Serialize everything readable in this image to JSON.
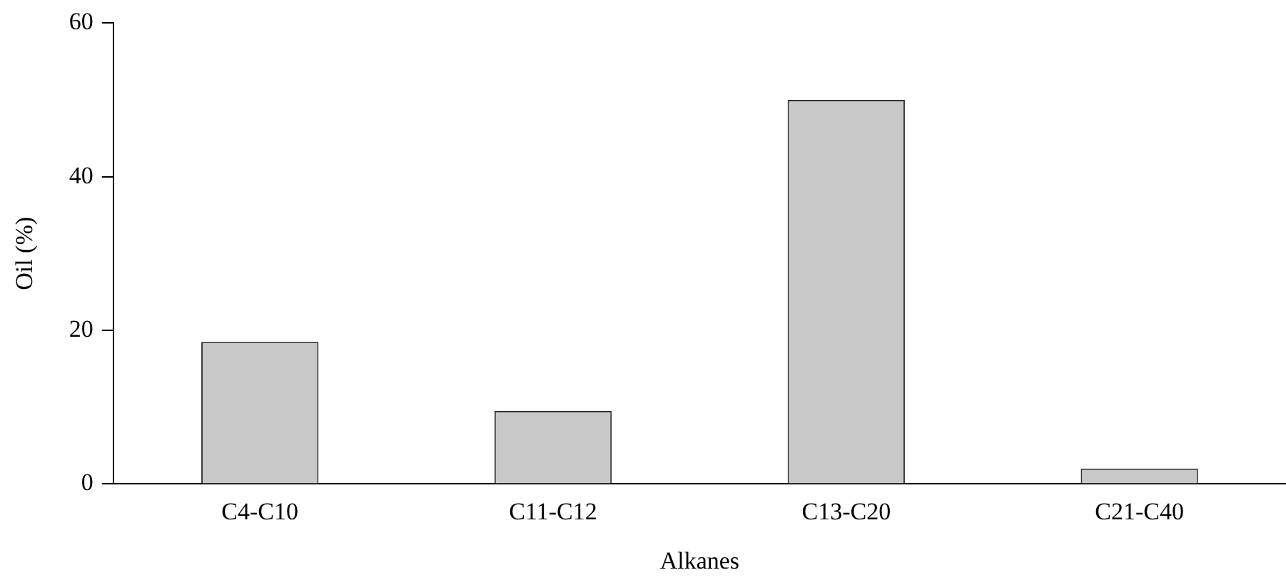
{
  "chart_data": {
    "type": "bar",
    "xlabel": "Alkanes",
    "ylabel": "Oil (%)",
    "categories": [
      "C4-C10",
      "C11-C12",
      "C13-C20",
      "C21-C40"
    ],
    "values": [
      18.5,
      9.5,
      50,
      2
    ],
    "color": "#c8c8c8",
    "ylim": [
      0,
      60
    ],
    "yticks": [
      0,
      20,
      40,
      60
    ],
    "grid": false,
    "legend": false
  }
}
